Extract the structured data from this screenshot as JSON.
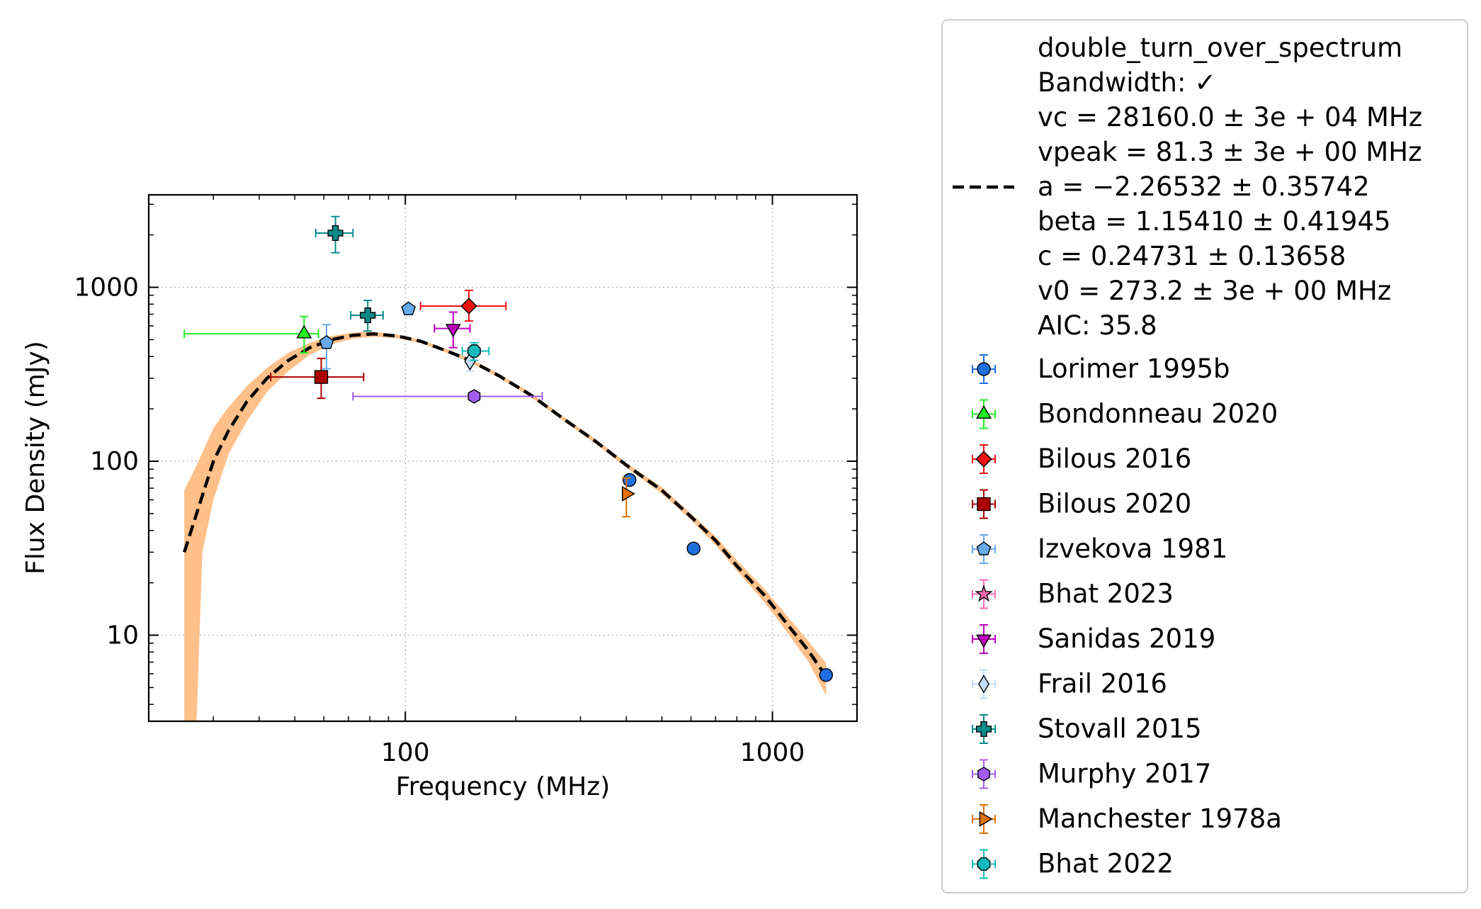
{
  "chart_data": {
    "type": "scatter",
    "title": "",
    "xlabel": "Frequency (MHz)",
    "ylabel": "Flux Density (mJy)",
    "xscale": "log",
    "yscale": "log",
    "xlim": [
      20,
      1700
    ],
    "ylim": [
      3.2,
      3400
    ],
    "xticks": [
      {
        "v": 100,
        "label": "100"
      },
      {
        "v": 1000,
        "label": "1000"
      }
    ],
    "yticks": [
      {
        "v": 10,
        "label": "10"
      },
      {
        "v": 100,
        "label": "100"
      },
      {
        "v": 1000,
        "label": "1000"
      }
    ],
    "grid": true,
    "legend_position": "outside-right",
    "fit": {
      "label": "double_turn_over_spectrum",
      "lines": [
        "double_turn_over_spectrum",
        "Bandwidth: ✓",
        "vc = 28160.0 ± 3e + 04 MHz",
        "vpeak = 81.3 ± 3e + 00 MHz",
        "a = −2.26532 ± 0.35742",
        "beta = 1.15410 ± 0.41945",
        "c = 0.24731 ± 0.13658",
        "v0 = 273.2 ± 3e + 00 MHz",
        "AIC: 35.8"
      ],
      "color": "#000000",
      "band_color": "#ffc08a",
      "curve": [
        [
          25,
          30
        ],
        [
          27,
          50
        ],
        [
          30,
          100
        ],
        [
          33,
          150
        ],
        [
          37,
          220
        ],
        [
          42,
          300
        ],
        [
          48,
          380
        ],
        [
          55,
          450
        ],
        [
          63,
          500
        ],
        [
          72,
          530
        ],
        [
          82,
          540
        ],
        [
          95,
          525
        ],
        [
          110,
          490
        ],
        [
          130,
          430
        ],
        [
          150,
          380
        ],
        [
          180,
          310
        ],
        [
          220,
          240
        ],
        [
          270,
          175
        ],
        [
          330,
          130
        ],
        [
          400,
          95
        ],
        [
          500,
          68
        ],
        [
          600,
          48
        ],
        [
          700,
          35
        ],
        [
          800,
          25
        ],
        [
          950,
          17
        ],
        [
          1100,
          11.5
        ],
        [
          1250,
          8.2
        ],
        [
          1400,
          5.8
        ]
      ],
      "band_upper": [
        [
          25,
          68
        ],
        [
          27,
          95
        ],
        [
          30,
          155
        ],
        [
          33,
          205
        ],
        [
          37,
          270
        ],
        [
          42,
          345
        ],
        [
          48,
          420
        ],
        [
          55,
          480
        ],
        [
          63,
          525
        ],
        [
          72,
          550
        ],
        [
          82,
          555
        ],
        [
          95,
          535
        ],
        [
          110,
          500
        ],
        [
          130,
          440
        ],
        [
          150,
          390
        ],
        [
          180,
          318
        ],
        [
          220,
          247
        ],
        [
          270,
          180
        ],
        [
          330,
          134
        ],
        [
          400,
          98
        ],
        [
          500,
          71
        ],
        [
          600,
          50
        ],
        [
          700,
          37
        ],
        [
          800,
          27
        ],
        [
          950,
          18.5
        ],
        [
          1100,
          12.8
        ],
        [
          1250,
          9.3
        ],
        [
          1400,
          6.9
        ]
      ],
      "band_lower": [
        [
          25,
          3.2
        ],
        [
          27,
          3.2
        ],
        [
          28,
          30
        ],
        [
          30,
          60
        ],
        [
          33,
          110
        ],
        [
          37,
          170
        ],
        [
          42,
          250
        ],
        [
          48,
          330
        ],
        [
          55,
          410
        ],
        [
          63,
          470
        ],
        [
          72,
          505
        ],
        [
          82,
          520
        ],
        [
          95,
          510
        ],
        [
          110,
          478
        ],
        [
          130,
          420
        ],
        [
          150,
          370
        ],
        [
          180,
          302
        ],
        [
          220,
          233
        ],
        [
          270,
          170
        ],
        [
          330,
          126
        ],
        [
          400,
          92
        ],
        [
          500,
          65
        ],
        [
          600,
          46
        ],
        [
          700,
          33
        ],
        [
          800,
          23.5
        ],
        [
          950,
          15.5
        ],
        [
          1100,
          10.3
        ],
        [
          1250,
          7.1
        ],
        [
          1400,
          4.5
        ]
      ]
    },
    "series": [
      {
        "name": "Lorimer 1995b",
        "marker": "circle",
        "color": "#1f6fe0",
        "points": [
          {
            "x": 408,
            "y": 78,
            "xerr": [
              408,
              408
            ],
            "yerr": [
              74,
              82
            ]
          },
          {
            "x": 610,
            "y": 31.5,
            "xerr": [
              610,
              610
            ],
            "yerr": [
              30,
              33
            ]
          },
          {
            "x": 1400,
            "y": 5.9,
            "xerr": [
              1400,
              1400
            ],
            "yerr": [
              5.6,
              6.2
            ]
          }
        ]
      },
      {
        "name": "Bondonneau 2020",
        "marker": "triangle-up",
        "color": "#22ee22",
        "points": [
          {
            "x": 53,
            "y": 540,
            "xerr": [
              25,
              58
            ],
            "yerr": [
              420,
              680
            ]
          }
        ]
      },
      {
        "name": "Bilous 2016",
        "marker": "diamond",
        "color": "#ee1111",
        "points": [
          {
            "x": 149,
            "y": 780,
            "xerr": [
              110,
              188
            ],
            "yerr": [
              640,
              960
            ]
          }
        ]
      },
      {
        "name": "Bilous 2020",
        "marker": "square",
        "color": "#aa0000",
        "points": [
          {
            "x": 59,
            "y": 305,
            "xerr": [
              43,
              77
            ],
            "yerr": [
              230,
              390
            ]
          }
        ]
      },
      {
        "name": "Izvekova 1981",
        "marker": "pentagon",
        "color": "#66aaee",
        "points": [
          {
            "x": 61,
            "y": 480,
            "xerr": [
              61,
              61
            ],
            "yerr": [
              340,
              610
            ]
          },
          {
            "x": 102,
            "y": 750,
            "xerr": [
              102,
              102
            ],
            "yerr": [
              720,
              790
            ]
          }
        ]
      },
      {
        "name": "Bhat 2023",
        "marker": "star",
        "color": "#ff69b4",
        "points": []
      },
      {
        "name": "Sanidas 2019",
        "marker": "triangle-down",
        "color": "#bb00bb",
        "points": [
          {
            "x": 135,
            "y": 580,
            "xerr": [
              120,
              150
            ],
            "yerr": [
              450,
              720
            ]
          }
        ]
      },
      {
        "name": "Frail 2016",
        "marker": "thin-diamond",
        "color": "#c4dcf4",
        "points": [
          {
            "x": 150,
            "y": 375,
            "xerr": [
              150,
              150
            ],
            "yerr": [
              330,
              420
            ]
          }
        ]
      },
      {
        "name": "Stovall 2015",
        "marker": "plus",
        "color": "#0b8a8a",
        "points": [
          {
            "x": 64.5,
            "y": 2050,
            "xerr": [
              57,
              72
            ],
            "yerr": [
              1580,
              2550
            ]
          },
          {
            "x": 79,
            "y": 690,
            "xerr": [
              71,
              87
            ],
            "yerr": [
              560,
              840
            ]
          }
        ]
      },
      {
        "name": "Murphy 2017",
        "marker": "hexagon",
        "color": "#a45cf0",
        "points": [
          {
            "x": 154,
            "y": 236,
            "xerr": [
              72,
              236
            ],
            "yerr": [
              236,
              236
            ]
          }
        ]
      },
      {
        "name": "Manchester 1978a",
        "marker": "triangle-right",
        "color": "#e07000",
        "points": [
          {
            "x": 400,
            "y": 65,
            "xerr": [
              400,
              400
            ],
            "yerr": [
              48,
              80
            ]
          }
        ]
      },
      {
        "name": "Bhat 2022",
        "marker": "octagon",
        "color": "#11bbbb",
        "points": [
          {
            "x": 154,
            "y": 430,
            "xerr": [
              143,
              169
            ],
            "yerr": [
              380,
              480
            ]
          }
        ]
      }
    ]
  }
}
